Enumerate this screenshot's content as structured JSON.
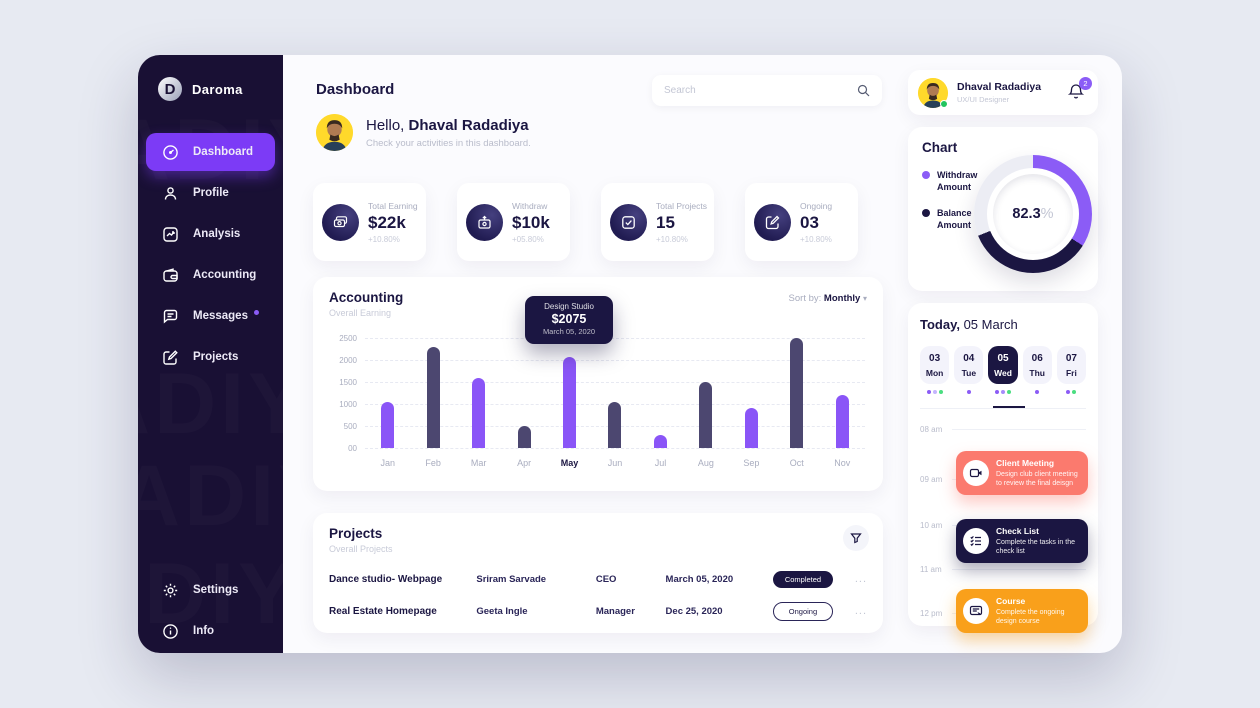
{
  "app": {
    "name": "Daroma"
  },
  "sidebar": {
    "logo": "Daroma",
    "items": [
      {
        "label": "Dashboard",
        "active": true
      },
      {
        "label": "Profile",
        "active": false
      },
      {
        "label": "Analysis",
        "active": false
      },
      {
        "label": "Accounting",
        "active": false
      },
      {
        "label": "Messages",
        "active": false,
        "badge_dot": true
      },
      {
        "label": "Projects",
        "active": false
      }
    ],
    "footer_items": [
      {
        "label": "Settings"
      },
      {
        "label": "Info"
      }
    ],
    "watermark": "ADIY"
  },
  "header": {
    "title": "Dashboard",
    "search_placeholder": "Search"
  },
  "greeting": {
    "hello": "Hello,",
    "name": "Dhaval Radadiya",
    "subtitle": "Check your activities in this dashboard."
  },
  "stats": [
    {
      "label": "Total Earning",
      "value": "$22k",
      "delta": "+10.80%",
      "icon": "cash-icon"
    },
    {
      "label": "Withdraw",
      "value": "$10k",
      "delta": "+05.80%",
      "icon": "withdraw-icon"
    },
    {
      "label": "Total Projects",
      "value": "15",
      "delta": "+10.80%",
      "icon": "check-square-icon"
    },
    {
      "label": "Ongoing",
      "value": "03",
      "delta": "+10.80%",
      "icon": "edit-icon"
    }
  ],
  "accounting": {
    "title": "Accounting",
    "subtitle": "Overall Earning",
    "sort_label": "Sort by:",
    "sort_value": "Monthly"
  },
  "chart_data": [
    {
      "type": "bar",
      "title": "Accounting",
      "subtitle": "Overall Earning",
      "categories": [
        "Jan",
        "Feb",
        "Mar",
        "Apr",
        "May",
        "Jun",
        "Jul",
        "Aug",
        "Sep",
        "Oct",
        "Nov"
      ],
      "values": [
        1050,
        2300,
        1600,
        500,
        2075,
        1050,
        300,
        1500,
        900,
        2500,
        1200
      ],
      "bar_colors": [
        "#8A55F7",
        "#4C4770",
        "#8A55F7",
        "#4C4770",
        "#8A55F7",
        "#4C4770",
        "#8A55F7",
        "#4C4770",
        "#8A55F7",
        "#4C4770",
        "#8A55F7"
      ],
      "highlight_index": 4,
      "xlabel": "",
      "ylabel": "",
      "ylim": [
        0,
        2500
      ],
      "ytick_labels": [
        "2500",
        "2000",
        "1500",
        "1000",
        "500",
        "00"
      ],
      "grid": "dashed horizontal",
      "legend_position": "none",
      "tooltip": {
        "title": "Design Studio",
        "value": "$2075",
        "date": "March 05, 2020"
      }
    },
    {
      "type": "pie",
      "title": "Chart",
      "center_label": "82.3",
      "center_suffix": "%",
      "slices": [
        {
          "name": "Withdraw Amount",
          "color": "#8B5CF6",
          "fraction": 0.34
        },
        {
          "name": "Balance Amount",
          "color": "#1B1642",
          "fraction": 0.35
        },
        {
          "name": "unfilled",
          "color": "#ECEDF4",
          "fraction": 0.31
        }
      ],
      "legend_position": "left"
    }
  ],
  "projects": {
    "title": "Projects",
    "subtitle": "Overall Projects",
    "rows": [
      {
        "name": "Dance studio- Webpage",
        "person": "Sriram Sarvade",
        "role": "CEO",
        "date": "March 05, 2020",
        "status": "Completed",
        "status_style": "filled",
        "menu": "..."
      },
      {
        "name": "Real Estate Homepage",
        "person": "Geeta Ingle",
        "role": "Manager",
        "date": "Dec 25, 2020",
        "status": "Ongoing",
        "status_style": "outline",
        "menu": "..."
      }
    ]
  },
  "profile_card": {
    "name": "Dhaval Radadiya",
    "role": "UX/UI Designer",
    "notification_count": "2"
  },
  "donut_card": {
    "title": "Chart"
  },
  "today": {
    "title_bold": "Today,",
    "title_rest": " 05 March",
    "days": [
      {
        "date": "03",
        "day": "Mon",
        "selected": false,
        "dots": [
          "#8B5CF6",
          "#C4B5FD",
          "#4ADE80"
        ]
      },
      {
        "date": "04",
        "day": "Tue",
        "selected": false,
        "dots": [
          "#8B5CF6"
        ]
      },
      {
        "date": "05",
        "day": "Wed",
        "selected": true,
        "dots": [
          "#8B5CF6",
          "#A78BFA",
          "#4ADE80"
        ]
      },
      {
        "date": "06",
        "day": "Thu",
        "selected": false,
        "dots": [
          "#8B5CF6"
        ]
      },
      {
        "date": "07",
        "day": "Fri",
        "selected": false,
        "dots": [
          "#8B5CF6",
          "#4ADE80"
        ]
      }
    ],
    "times": [
      "08 am",
      "09 am",
      "10 am",
      "11 am",
      "12 pm"
    ],
    "events": [
      {
        "time": "09 am",
        "title": "Client Meeting",
        "desc": "Design club client meeting to review the final deisgn",
        "color": "#FB7A6E",
        "icon": "video-icon"
      },
      {
        "time": "10 am",
        "title": "Check List",
        "desc": "Complete the tasks in the check list",
        "color": "#1B1642",
        "icon": "checklist-icon"
      },
      {
        "time": "12 pm",
        "title": "Course",
        "desc": "Complete the ongoing design course",
        "color": "#F9A01B",
        "icon": "course-icon"
      }
    ]
  },
  "colors": {
    "accent": "#7C3BF6",
    "navy": "#1B1642",
    "bar_purple": "#8A55F7",
    "bar_dark": "#4C4770",
    "event_red": "#FB7A6E",
    "event_orange": "#F9A01B",
    "green": "#4ADE80",
    "page_bg": "#E7EAF2"
  }
}
